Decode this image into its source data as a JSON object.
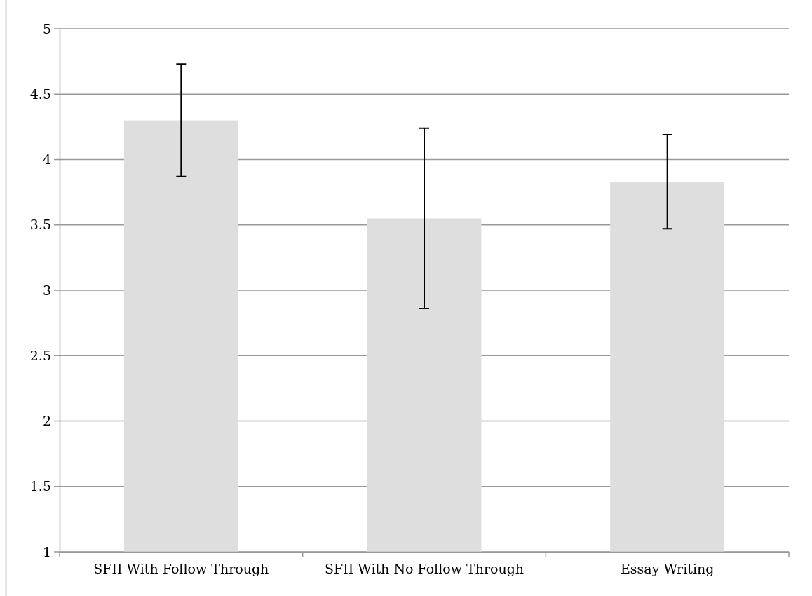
{
  "chart_data": {
    "type": "bar",
    "categories": [
      "SFII With Follow Through",
      "SFII With No Follow Through",
      "Essay Writing"
    ],
    "values": [
      4.3,
      3.55,
      3.83
    ],
    "errors": [
      0.43,
      0.69,
      0.36
    ],
    "color": "#dedede",
    "ylim": [
      1,
      5
    ],
    "yticks": [
      1,
      1.5,
      2,
      2.5,
      3,
      3.5,
      4,
      4.5,
      5
    ],
    "grid": "y"
  }
}
